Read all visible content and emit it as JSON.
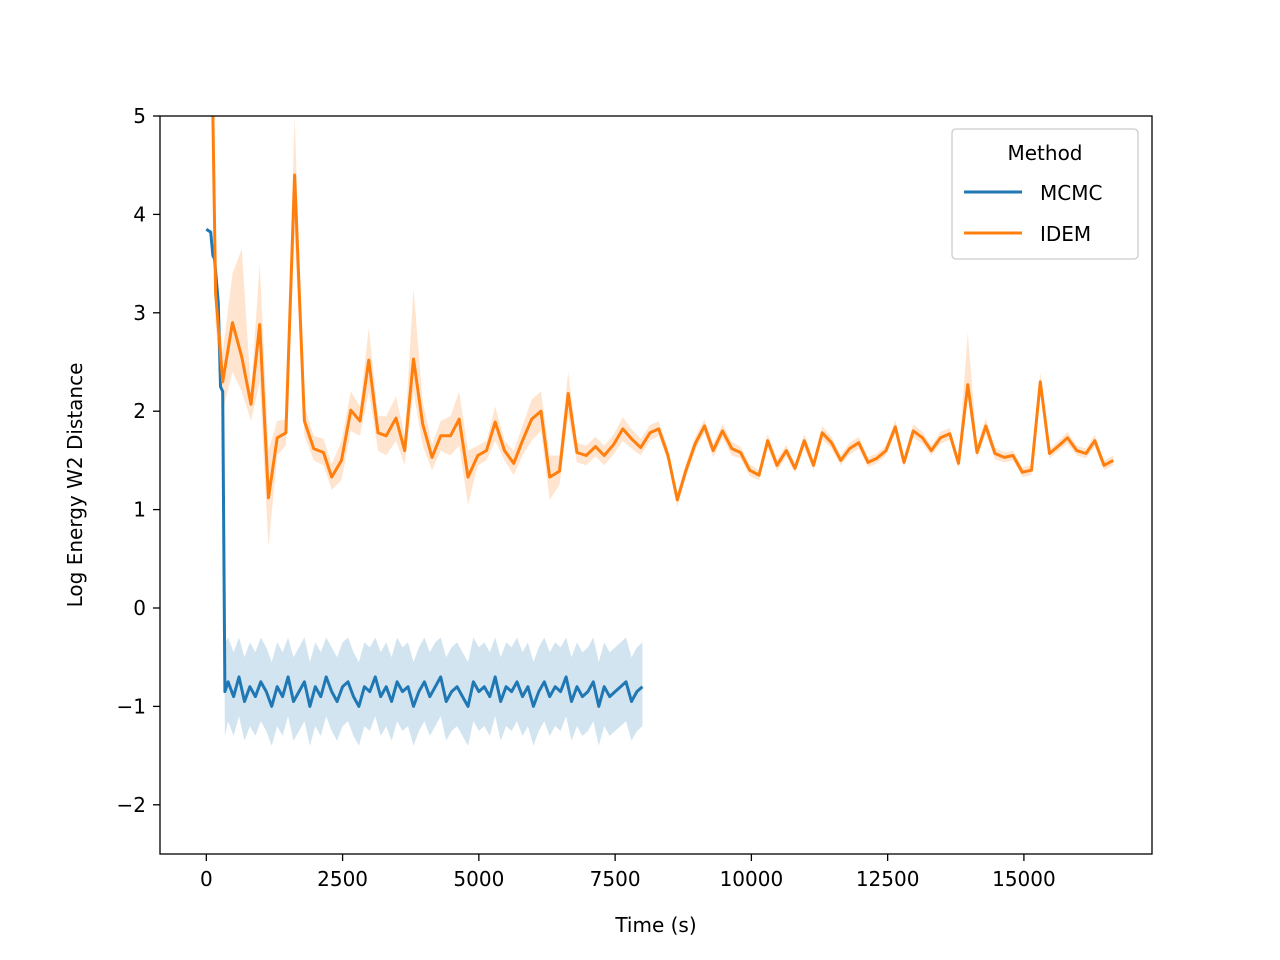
{
  "chart_data": {
    "type": "line",
    "xlabel": "Time (s)",
    "ylabel": "Log Energy W2 Distance",
    "xlim": [
      -850,
      17350
    ],
    "ylim": [
      -2.5,
      5
    ],
    "xticks": [
      0,
      2500,
      5000,
      7500,
      10000,
      12500,
      15000
    ],
    "xtick_labels": [
      "0",
      "2500",
      "5000",
      "7500",
      "10000",
      "12500",
      "15000"
    ],
    "yticks": [
      -2,
      -1,
      0,
      1,
      2,
      3,
      4,
      5
    ],
    "ytick_labels": [
      "−2",
      "−1",
      "0",
      "1",
      "2",
      "3",
      "4",
      "5"
    ],
    "grid": false,
    "legend": {
      "title": "Method",
      "placement": "upper-right",
      "entries": [
        "MCMC",
        "IDEM"
      ]
    },
    "series": [
      {
        "name": "MCMC",
        "color": "#1f77b4",
        "band_color": "#1f77b4",
        "x": [
          0,
          80,
          120,
          150,
          220,
          260,
          300,
          340,
          400,
          500,
          600,
          700,
          800,
          900,
          1000,
          1100,
          1200,
          1300,
          1400,
          1500,
          1600,
          1700,
          1800,
          1900,
          2000,
          2100,
          2200,
          2300,
          2400,
          2500,
          2600,
          2700,
          2800,
          2900,
          3000,
          3100,
          3200,
          3300,
          3400,
          3500,
          3600,
          3700,
          3800,
          3900,
          4000,
          4100,
          4200,
          4300,
          4400,
          4500,
          4600,
          4700,
          4800,
          4900,
          5000,
          5100,
          5200,
          5300,
          5400,
          5500,
          5600,
          5700,
          5800,
          5900,
          6000,
          6100,
          6200,
          6300,
          6400,
          6500,
          6600,
          6700,
          6800,
          6900,
          7000,
          7100,
          7200,
          7300,
          7400,
          7500,
          7600,
          7700,
          7800,
          7900,
          8000
        ],
        "y": [
          3.85,
          3.82,
          3.58,
          3.55,
          3.1,
          2.25,
          2.2,
          -0.85,
          -0.75,
          -0.9,
          -0.7,
          -0.95,
          -0.8,
          -0.9,
          -0.75,
          -0.85,
          -1.0,
          -0.8,
          -0.9,
          -0.7,
          -0.95,
          -0.85,
          -0.75,
          -1.0,
          -0.8,
          -0.9,
          -0.7,
          -0.85,
          -0.95,
          -0.8,
          -0.75,
          -0.9,
          -1.0,
          -0.8,
          -0.85,
          -0.7,
          -0.9,
          -0.8,
          -0.95,
          -0.75,
          -0.85,
          -0.8,
          -1.0,
          -0.85,
          -0.75,
          -0.9,
          -0.8,
          -0.7,
          -0.95,
          -0.85,
          -0.8,
          -0.9,
          -1.0,
          -0.75,
          -0.85,
          -0.8,
          -0.9,
          -0.7,
          -0.95,
          -0.8,
          -0.85,
          -0.75,
          -0.9,
          -0.8,
          -1.0,
          -0.85,
          -0.75,
          -0.9,
          -0.8,
          -0.85,
          -0.7,
          -0.95,
          -0.8,
          -0.9,
          -0.85,
          -0.75,
          -1.0,
          -0.8,
          -0.9,
          -0.85,
          -0.8,
          -0.75,
          -0.95,
          -0.85,
          -0.8
        ],
        "y_low": [
          3.85,
          3.82,
          3.58,
          3.55,
          3.1,
          2.25,
          2.2,
          -1.3,
          -1.15,
          -1.3,
          -1.1,
          -1.35,
          -1.2,
          -1.3,
          -1.15,
          -1.25,
          -1.4,
          -1.2,
          -1.3,
          -1.1,
          -1.35,
          -1.25,
          -1.15,
          -1.4,
          -1.2,
          -1.3,
          -1.1,
          -1.25,
          -1.35,
          -1.2,
          -1.15,
          -1.3,
          -1.4,
          -1.2,
          -1.25,
          -1.1,
          -1.3,
          -1.2,
          -1.35,
          -1.15,
          -1.25,
          -1.2,
          -1.4,
          -1.25,
          -1.15,
          -1.3,
          -1.2,
          -1.1,
          -1.35,
          -1.25,
          -1.2,
          -1.3,
          -1.4,
          -1.15,
          -1.25,
          -1.2,
          -1.3,
          -1.1,
          -1.35,
          -1.2,
          -1.25,
          -1.15,
          -1.3,
          -1.2,
          -1.4,
          -1.25,
          -1.15,
          -1.3,
          -1.2,
          -1.25,
          -1.1,
          -1.35,
          -1.2,
          -1.3,
          -1.25,
          -1.15,
          -1.4,
          -1.2,
          -1.3,
          -1.25,
          -1.2,
          -1.15,
          -1.35,
          -1.25,
          -1.2
        ],
        "y_high": [
          3.85,
          3.82,
          3.58,
          3.55,
          3.1,
          2.25,
          2.2,
          -0.35,
          -0.3,
          -0.45,
          -0.3,
          -0.5,
          -0.35,
          -0.45,
          -0.3,
          -0.4,
          -0.55,
          -0.35,
          -0.45,
          -0.3,
          -0.5,
          -0.4,
          -0.3,
          -0.55,
          -0.35,
          -0.45,
          -0.3,
          -0.4,
          -0.5,
          -0.35,
          -0.3,
          -0.45,
          -0.55,
          -0.35,
          -0.4,
          -0.3,
          -0.45,
          -0.35,
          -0.5,
          -0.3,
          -0.4,
          -0.35,
          -0.55,
          -0.4,
          -0.3,
          -0.45,
          -0.35,
          -0.3,
          -0.5,
          -0.4,
          -0.35,
          -0.45,
          -0.55,
          -0.3,
          -0.4,
          -0.35,
          -0.45,
          -0.3,
          -0.5,
          -0.35,
          -0.4,
          -0.3,
          -0.45,
          -0.35,
          -0.55,
          -0.4,
          -0.3,
          -0.45,
          -0.35,
          -0.4,
          -0.3,
          -0.5,
          -0.35,
          -0.45,
          -0.4,
          -0.3,
          -0.55,
          -0.35,
          -0.45,
          -0.4,
          -0.35,
          -0.3,
          -0.5,
          -0.4,
          -0.35
        ]
      },
      {
        "name": "IDEM",
        "color": "#ff7f0e",
        "band_color": "#ff7f0e",
        "x": [
          100,
          120,
          170,
          300,
          480,
          650,
          820,
          980,
          1140,
          1300,
          1460,
          1620,
          1800,
          1970,
          2150,
          2300,
          2480,
          2650,
          2820,
          2980,
          3150,
          3300,
          3480,
          3640,
          3800,
          3970,
          4140,
          4300,
          4480,
          4640,
          4800,
          4980,
          5140,
          5300,
          5470,
          5640,
          5800,
          5970,
          6140,
          6300,
          6480,
          6640,
          6800,
          6970,
          7140,
          7300,
          7470,
          7640,
          7800,
          7970,
          8140,
          8300,
          8470,
          8640,
          8800,
          8970,
          9140,
          9300,
          9470,
          9640,
          9800,
          9970,
          10140,
          10300,
          10470,
          10640,
          10800,
          10970,
          11140,
          11300,
          11470,
          11640,
          11800,
          11970,
          12140,
          12300,
          12470,
          12640,
          12800,
          12970,
          13140,
          13300,
          13470,
          13640,
          13800,
          13970,
          14140,
          14300,
          14470,
          14640,
          14800,
          14970,
          15140,
          15300,
          15470,
          15640,
          15800,
          15970,
          16140,
          16300,
          16470,
          16640
        ],
        "y": [
          5.0,
          5.0,
          3.2,
          2.3,
          2.9,
          2.55,
          2.07,
          2.88,
          1.12,
          1.73,
          1.78,
          4.4,
          1.9,
          1.62,
          1.58,
          1.33,
          1.5,
          2.01,
          1.9,
          2.52,
          1.78,
          1.75,
          1.93,
          1.6,
          2.53,
          1.87,
          1.53,
          1.75,
          1.75,
          1.92,
          1.33,
          1.55,
          1.6,
          1.89,
          1.6,
          1.47,
          1.7,
          1.92,
          2.0,
          1.33,
          1.39,
          2.18,
          1.58,
          1.55,
          1.64,
          1.55,
          1.66,
          1.82,
          1.72,
          1.63,
          1.78,
          1.82,
          1.55,
          1.1,
          1.4,
          1.67,
          1.85,
          1.6,
          1.8,
          1.62,
          1.58,
          1.4,
          1.35,
          1.7,
          1.45,
          1.6,
          1.42,
          1.7,
          1.45,
          1.78,
          1.68,
          1.5,
          1.62,
          1.68,
          1.48,
          1.52,
          1.6,
          1.84,
          1.48,
          1.8,
          1.73,
          1.6,
          1.73,
          1.77,
          1.47,
          2.27,
          1.58,
          1.85,
          1.57,
          1.53,
          1.55,
          1.38,
          1.4,
          2.3,
          1.57,
          1.65,
          1.73,
          1.6,
          1.57,
          1.7,
          1.45,
          1.5
        ],
        "y_low": [
          5.0,
          5.0,
          2.9,
          2.0,
          2.4,
          2.2,
          1.9,
          2.3,
          0.62,
          1.55,
          1.65,
          3.8,
          1.75,
          1.5,
          1.45,
          1.2,
          1.3,
          1.8,
          1.75,
          2.2,
          1.6,
          1.55,
          1.7,
          1.45,
          2.2,
          1.65,
          1.4,
          1.6,
          1.55,
          1.65,
          1.05,
          1.45,
          1.5,
          1.7,
          1.5,
          1.35,
          1.55,
          1.7,
          1.8,
          1.1,
          1.25,
          1.95,
          1.48,
          1.45,
          1.54,
          1.45,
          1.56,
          1.7,
          1.62,
          1.55,
          1.7,
          1.75,
          1.48,
          1.03,
          1.33,
          1.6,
          1.78,
          1.53,
          1.73,
          1.55,
          1.52,
          1.34,
          1.3,
          1.63,
          1.39,
          1.54,
          1.37,
          1.63,
          1.4,
          1.71,
          1.62,
          1.45,
          1.56,
          1.62,
          1.43,
          1.47,
          1.55,
          1.77,
          1.43,
          1.73,
          1.67,
          1.55,
          1.67,
          1.71,
          1.42,
          2.15,
          1.52,
          1.77,
          1.51,
          1.48,
          1.5,
          1.33,
          1.35,
          2.2,
          1.52,
          1.6,
          1.67,
          1.55,
          1.52,
          1.64,
          1.4,
          1.45
        ],
        "y_high": [
          5.0,
          5.0,
          3.5,
          2.6,
          3.4,
          3.65,
          2.2,
          3.5,
          1.6,
          1.9,
          1.92,
          5.0,
          2.05,
          1.75,
          1.72,
          1.46,
          1.7,
          2.2,
          2.05,
          2.85,
          1.95,
          1.95,
          2.15,
          1.75,
          3.25,
          2.1,
          1.66,
          1.9,
          1.95,
          2.2,
          1.6,
          1.65,
          1.7,
          2.05,
          1.7,
          1.6,
          1.85,
          2.12,
          2.2,
          1.55,
          1.55,
          2.4,
          1.68,
          1.65,
          1.74,
          1.65,
          1.76,
          1.94,
          1.82,
          1.72,
          1.86,
          1.9,
          1.62,
          1.17,
          1.47,
          1.74,
          1.92,
          1.67,
          1.87,
          1.69,
          1.64,
          1.46,
          1.4,
          1.77,
          1.51,
          1.66,
          1.47,
          1.77,
          1.5,
          1.85,
          1.74,
          1.55,
          1.68,
          1.74,
          1.53,
          1.57,
          1.65,
          1.91,
          1.53,
          1.87,
          1.79,
          1.65,
          1.79,
          1.83,
          1.52,
          2.8,
          1.64,
          1.93,
          1.63,
          1.58,
          1.6,
          1.43,
          1.45,
          2.4,
          1.62,
          1.7,
          1.79,
          1.65,
          1.62,
          1.76,
          1.5,
          1.55
        ]
      }
    ]
  }
}
